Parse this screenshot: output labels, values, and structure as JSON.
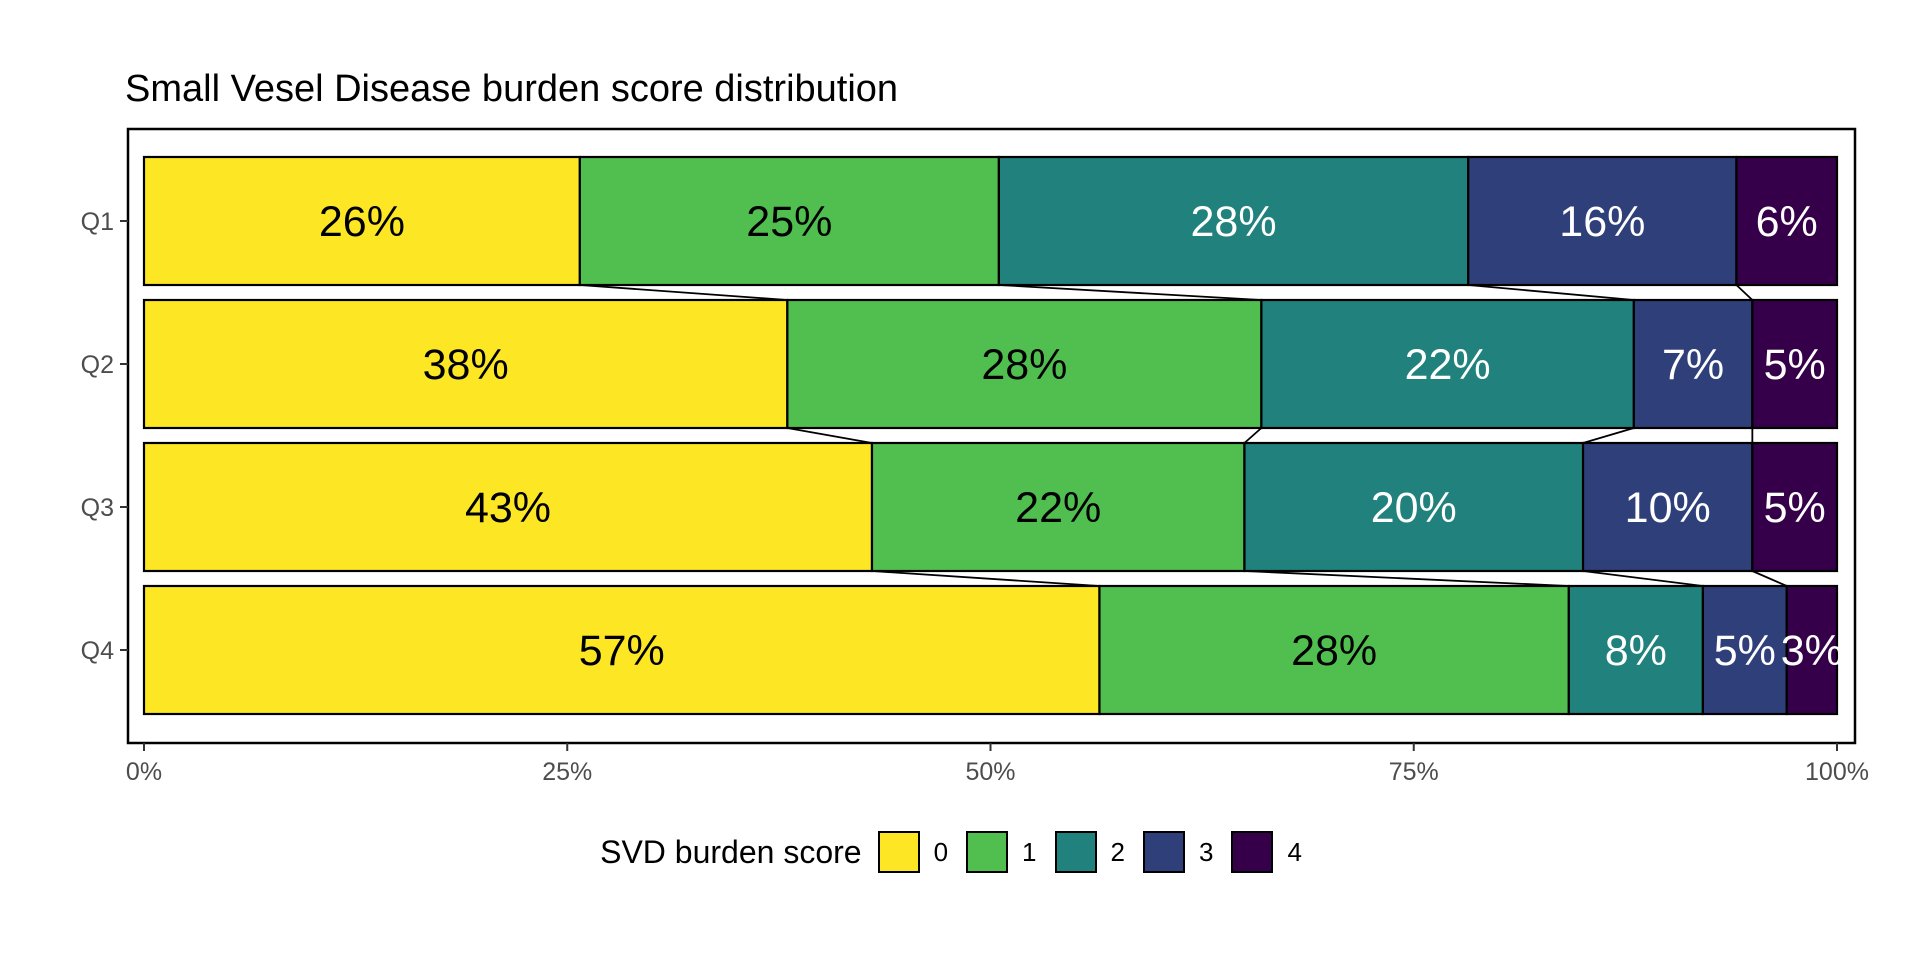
{
  "chart_data": {
    "type": "bar",
    "orientation": "horizontal",
    "stacked": "percent",
    "title": "Small Vesel Disease burden score distribution",
    "categories": [
      "Q1",
      "Q2",
      "Q3",
      "Q4"
    ],
    "series": [
      {
        "name": "0",
        "color": "#FDE725",
        "values": [
          26,
          38,
          43,
          57
        ],
        "labels": [
          "26%",
          "38%",
          "43%",
          "57%"
        ],
        "label_color": "#000000"
      },
      {
        "name": "1",
        "color": "#51BF4F",
        "values": [
          25,
          28,
          22,
          28
        ],
        "labels": [
          "25%",
          "28%",
          "22%",
          "28%"
        ],
        "label_color": "#000000"
      },
      {
        "name": "2",
        "color": "#21817C",
        "values": [
          28,
          22,
          20,
          8
        ],
        "labels": [
          "28%",
          "22%",
          "20%",
          "8%"
        ],
        "label_color": "#FFFFFF"
      },
      {
        "name": "3",
        "color": "#2E3F7A",
        "values": [
          16,
          7,
          10,
          5
        ],
        "labels": [
          "16%",
          "7%",
          "10%",
          "5%"
        ],
        "label_color": "#FFFFFF"
      },
      {
        "name": "4",
        "color": "#350049",
        "values": [
          6,
          5,
          5,
          3
        ],
        "labels": [
          "6%",
          "5%",
          "5%",
          "3%"
        ],
        "label_color": "#FFFFFF"
      }
    ],
    "x_ticks": [
      "0%",
      "25%",
      "50%",
      "75%",
      "100%"
    ],
    "xlim": [
      0,
      100
    ],
    "legend": {
      "title": "SVD burden score",
      "position": "bottom"
    },
    "connector_lines": true
  }
}
